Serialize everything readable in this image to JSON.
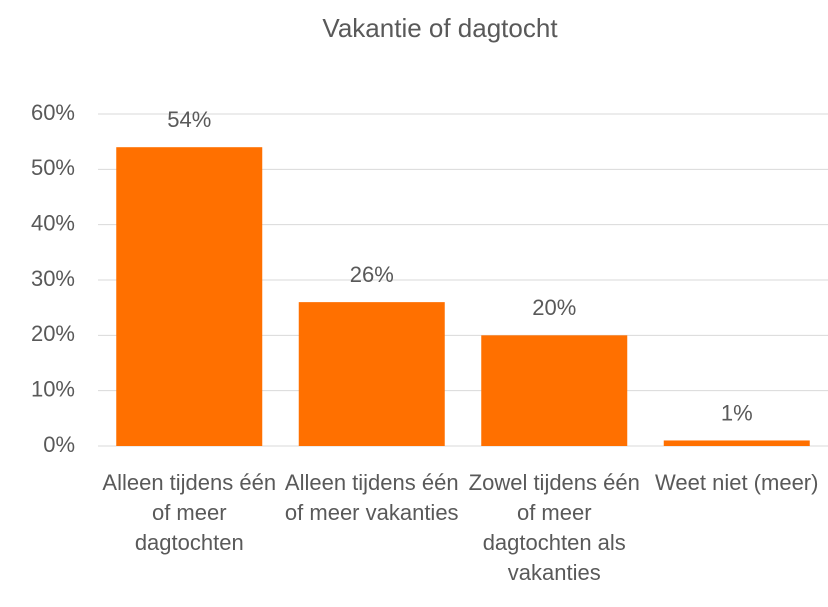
{
  "chart_data": {
    "type": "bar",
    "title": "Vakantie of dagtocht",
    "categories": [
      "Alleen tijdens één of meer dagtochten",
      "Alleen tijdens één of meer vakanties",
      "Zowel tijdens één of meer dagtochten als vakanties",
      "Weet niet (meer)"
    ],
    "values": [
      54,
      26,
      20,
      1
    ],
    "value_labels": [
      "54%",
      "26%",
      "20%",
      "1%"
    ],
    "color": "#ff7000",
    "ylim": [
      0,
      60
    ],
    "yticks": [
      {
        "value": 0,
        "label": "0%"
      },
      {
        "value": 10,
        "label": "10%"
      },
      {
        "value": 20,
        "label": "20%"
      },
      {
        "value": 30,
        "label": "30%"
      },
      {
        "value": 40,
        "label": "40%"
      },
      {
        "value": 50,
        "label": "50%"
      },
      {
        "value": 60,
        "label": "60%"
      }
    ],
    "grid": true
  }
}
